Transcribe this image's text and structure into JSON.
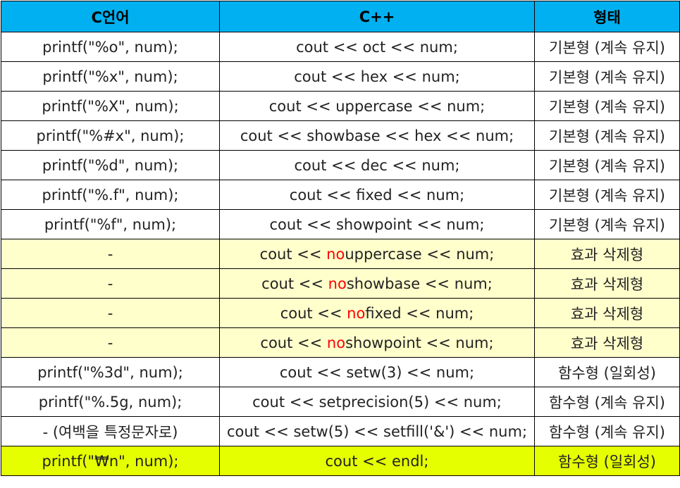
{
  "table": {
    "headers": [
      "C언어",
      "C++",
      "형태"
    ],
    "rows": [
      {
        "style": "basic",
        "c": "printf(\"%o\", num);",
        "cpp": [
          "cout << oct << num;"
        ],
        "form": "기본형 (계속 유지)"
      },
      {
        "style": "basic",
        "c": "printf(\"%x\", num);",
        "cpp": [
          "cout << hex << num;"
        ],
        "form": "기본형 (계속 유지)"
      },
      {
        "style": "basic",
        "c": "printf(\"%X\", num);",
        "cpp": [
          "cout << uppercase << num;"
        ],
        "form": "기본형 (계속 유지)"
      },
      {
        "style": "basic",
        "c": "printf(\"%#x\", num);",
        "cpp": [
          "cout << showbase << hex << num;"
        ],
        "form": "기본형 (계속 유지)"
      },
      {
        "style": "basic",
        "c": "printf(\"%d\", num);",
        "cpp": [
          "cout << dec << num;"
        ],
        "form": "기본형 (계속 유지)"
      },
      {
        "style": "basic",
        "c": "printf(\"%.f\", num);",
        "cpp": [
          "cout << fixed << num;"
        ],
        "form": "기본형 (계속 유지)"
      },
      {
        "style": "basic",
        "c": "printf(\"%f\", num);",
        "cpp": [
          "cout << showpoint << num;"
        ],
        "form": "기본형 (계속 유지)"
      },
      {
        "style": "removal",
        "c": "-",
        "cpp": [
          "cout << ",
          "no",
          "uppercase << num;"
        ],
        "form": "효과 삭제형"
      },
      {
        "style": "removal",
        "c": "-",
        "cpp": [
          "cout << ",
          "no",
          "showbase << num;"
        ],
        "form": "효과 삭제형"
      },
      {
        "style": "removal",
        "c": "-",
        "cpp": [
          "cout << ",
          "no",
          "fixed << num;"
        ],
        "form": "효과 삭제형"
      },
      {
        "style": "removal",
        "c": "-",
        "cpp": [
          "cout << ",
          "no",
          "showpoint << num;"
        ],
        "form": "효과 삭제형"
      },
      {
        "style": "basic",
        "c": "printf(\"%3d\", num);",
        "cpp": [
          "cout << setw(3) << num;"
        ],
        "form": "함수형 (일회성)"
      },
      {
        "style": "basic",
        "c": "printf(\"%.5g, num);",
        "cpp": [
          "cout << setprecision(5) << num;"
        ],
        "form": "함수형 (계속 유지)"
      },
      {
        "style": "basic",
        "c": "- (여백을 특정문자로)",
        "cpp": [
          "cout << setw(5) << setfill('&') << num;"
        ],
        "form": "함수형 (계속 유지)"
      },
      {
        "style": "highlight",
        "c": "printf(\"₩n\", num);",
        "cpp": [
          "cout << endl;"
        ],
        "form": "함수형 (일회성)"
      }
    ]
  },
  "colors": {
    "header_bg": "#00b0f0",
    "removal_row_bg": "#ffffcc",
    "highlight_row_bg": "#e6ff00",
    "no_prefix_color": "#ff0000"
  }
}
